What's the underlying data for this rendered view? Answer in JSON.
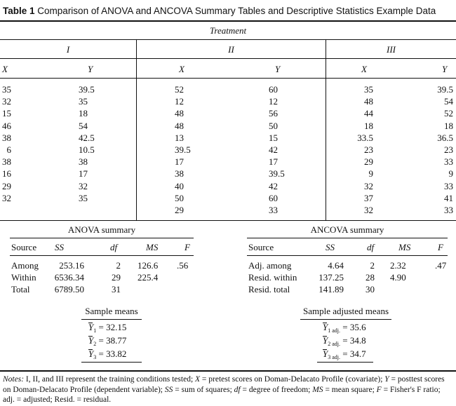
{
  "caption": {
    "label": "Table 1",
    "text": "Comparison of ANOVA and ANCOVA Summary Tables and Descriptive Statistics Example Data"
  },
  "treatment_header": "Treatment",
  "groups": [
    {
      "name": "I",
      "x_header": "X",
      "y_header": "Y",
      "rows": [
        [
          "35",
          "39.5"
        ],
        [
          "32",
          "35"
        ],
        [
          "15",
          "18"
        ],
        [
          "46",
          "54"
        ],
        [
          "38",
          "42.5"
        ],
        [
          "6",
          "10.5"
        ],
        [
          "38",
          "38"
        ],
        [
          "16",
          "17"
        ],
        [
          "29",
          "32"
        ],
        [
          "32",
          "35"
        ]
      ]
    },
    {
      "name": "II",
      "x_header": "X",
      "y_header": "Y",
      "rows": [
        [
          "52",
          "60"
        ],
        [
          "12",
          "12"
        ],
        [
          "48",
          "56"
        ],
        [
          "48",
          "50"
        ],
        [
          "13",
          "15"
        ],
        [
          "39.5",
          "42"
        ],
        [
          "17",
          "17"
        ],
        [
          "38",
          "39.5"
        ],
        [
          "40",
          "42"
        ],
        [
          "50",
          "60"
        ],
        [
          "29",
          "33"
        ]
      ]
    },
    {
      "name": "III",
      "x_header": "X",
      "y_header": "Y",
      "rows": [
        [
          "35",
          "39.5"
        ],
        [
          "48",
          "54"
        ],
        [
          "44",
          "52"
        ],
        [
          "18",
          "18"
        ],
        [
          "33.5",
          "36.5"
        ],
        [
          "23",
          "23"
        ],
        [
          "29",
          "33"
        ],
        [
          "9",
          "9"
        ],
        [
          "32",
          "33"
        ],
        [
          "37",
          "41"
        ],
        [
          "32",
          "33"
        ]
      ]
    }
  ],
  "anova": {
    "title": "ANOVA summary",
    "headers": [
      "Source",
      "SS",
      "df",
      "MS",
      "F"
    ],
    "rows": [
      [
        "Among",
        "253.16",
        "2",
        "126.6",
        ".56"
      ],
      [
        "Within",
        "6536.34",
        "29",
        "225.4",
        ""
      ],
      [
        "Total",
        "6789.50",
        "31",
        "",
        ""
      ]
    ]
  },
  "ancova": {
    "title": "ANCOVA summary",
    "headers": [
      "Source",
      "SS",
      "df",
      "MS",
      "F"
    ],
    "rows": [
      [
        "Adj. among",
        "4.64",
        "2",
        "2.32",
        ".47"
      ],
      [
        "Resid. within",
        "137.25",
        "28",
        "4.90",
        ""
      ],
      [
        "Resid. total",
        "141.89",
        "30",
        "",
        ""
      ]
    ]
  },
  "sample_means": {
    "title": "Sample means",
    "items": [
      {
        "symbol": "Y",
        "sub": "1",
        "value": "= 32.15"
      },
      {
        "symbol": "Y",
        "sub": "2",
        "value": "= 38.77"
      },
      {
        "symbol": "Y",
        "sub": "3",
        "value": "= 33.82"
      }
    ]
  },
  "adjusted_means": {
    "title": "Sample adjusted means",
    "items": [
      {
        "symbol": "Y",
        "sub": "1 adj.",
        "value": "= 35.6"
      },
      {
        "symbol": "Y",
        "sub": "2 adj.",
        "value": "= 34.8"
      },
      {
        "symbol": "Y",
        "sub": "3 adj.",
        "value": "= 34.7"
      }
    ]
  },
  "notes": {
    "label": "Notes:",
    "segments": [
      {
        "t": " I, II, and III represent the training conditions tested; ",
        "i": false
      },
      {
        "t": "X",
        "i": true
      },
      {
        "t": " = pretest scores on Doman-Delacato Profile (covariate); ",
        "i": false
      },
      {
        "t": "Y",
        "i": true
      },
      {
        "t": " = posttest scores on Doman-Delacato Profile (dependent variable); ",
        "i": false
      },
      {
        "t": "SS",
        "i": true
      },
      {
        "t": " = sum of squares; ",
        "i": false
      },
      {
        "t": "df",
        "i": true
      },
      {
        "t": " = degree of freedom; ",
        "i": false
      },
      {
        "t": "MS",
        "i": true
      },
      {
        "t": " = mean square; ",
        "i": false
      },
      {
        "t": "F",
        "i": true
      },
      {
        "t": " = Fisher's F ratio; adj. = adjusted; Resid. = residual.",
        "i": false
      }
    ]
  }
}
